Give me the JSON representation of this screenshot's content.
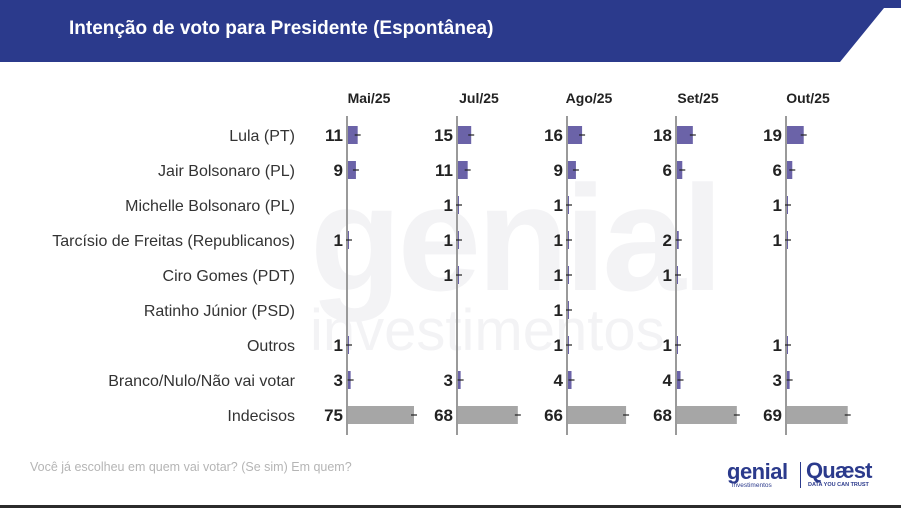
{
  "header": {
    "title": "Intenção de voto para Presidente (Espontânea)",
    "color": "#2b3a8c"
  },
  "footer": {
    "question": "Você já escolheu em quem vai votar? (Se sim) Em quem?",
    "logo_genial": "genial",
    "logo_genial_sub": "investimentos",
    "logo_quaest": "Quæst",
    "logo_quaest_sub": "DATA YOU CAN TRUST"
  },
  "watermark_text": "genial investimentos",
  "chart_data": {
    "type": "bar",
    "orientation": "horizontal",
    "panels": [
      "Mai/25",
      "Jul/25",
      "Ago/25",
      "Set/25",
      "Out/25"
    ],
    "categories": [
      "Lula (PT)",
      "Jair Bolsonaro (PL)",
      "Michelle Bolsonaro (PL)",
      "Tarcísio de Freitas (Republicanos)",
      "Ciro Gomes (PDT)",
      "Ratinho Júnior (PSD)",
      "Outros",
      "Branco/Nulo/Não vai votar",
      "Indecisos"
    ],
    "series": [
      {
        "panel": "Mai/25",
        "values": [
          11,
          9,
          null,
          1,
          null,
          null,
          1,
          3,
          75
        ]
      },
      {
        "panel": "Jul/25",
        "values": [
          15,
          11,
          1,
          1,
          1,
          null,
          null,
          3,
          68
        ]
      },
      {
        "panel": "Ago/25",
        "values": [
          16,
          9,
          1,
          1,
          1,
          1,
          1,
          4,
          66
        ]
      },
      {
        "panel": "Set/25",
        "values": [
          18,
          6,
          null,
          2,
          1,
          null,
          1,
          4,
          68
        ]
      },
      {
        "panel": "Out/25",
        "values": [
          19,
          6,
          1,
          1,
          null,
          null,
          1,
          3,
          69
        ]
      }
    ],
    "colors": {
      "candidate": "#6b63a8",
      "indecisos": "#a6a6a6",
      "axis": "#9a9a9a",
      "label": "#222222",
      "category_label": "#333333"
    }
  }
}
